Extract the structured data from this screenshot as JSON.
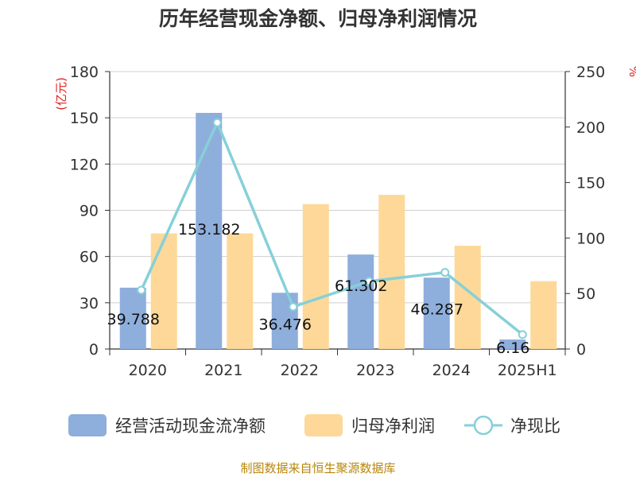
{
  "chart_data": {
    "type": "bar",
    "title": "历年经营现金净额、归母净利润情况",
    "categories": [
      "2020",
      "2021",
      "2022",
      "2023",
      "2024",
      "2025H1"
    ],
    "series": [
      {
        "name": "经营活动现金流净额",
        "type": "bar",
        "axis": "left",
        "values": [
          39.788,
          153.182,
          36.476,
          61.302,
          46.287,
          6.16
        ],
        "labels": [
          "39.788",
          "153.182",
          "36.476",
          "61.302",
          "46.287",
          "6.16"
        ]
      },
      {
        "name": "归母净利润",
        "type": "bar",
        "axis": "left",
        "values": [
          75,
          75,
          94,
          100,
          67,
          44
        ]
      },
      {
        "name": "净现比",
        "type": "line",
        "axis": "right",
        "values": [
          53,
          204,
          38,
          61,
          69,
          13
        ]
      }
    ],
    "y_left": {
      "unit": "(亿元)",
      "ylim": [
        0,
        180
      ],
      "ticks": [
        "0",
        "30",
        "60",
        "90",
        "120",
        "150",
        "180"
      ]
    },
    "y_right": {
      "unit": "%",
      "ylim": [
        0,
        250
      ],
      "ticks": [
        "0",
        "50",
        "100",
        "150",
        "200",
        "250"
      ]
    },
    "grid": true,
    "legend_position": "bottom",
    "colors": {
      "cash_flow": "#8eaedc",
      "net_profit": "#fdd898",
      "ratio": "#86d0d9",
      "unit_text": "#e0201c",
      "source_text": "#b8860b"
    }
  },
  "source": "制图数据来自恒生聚源数据库"
}
